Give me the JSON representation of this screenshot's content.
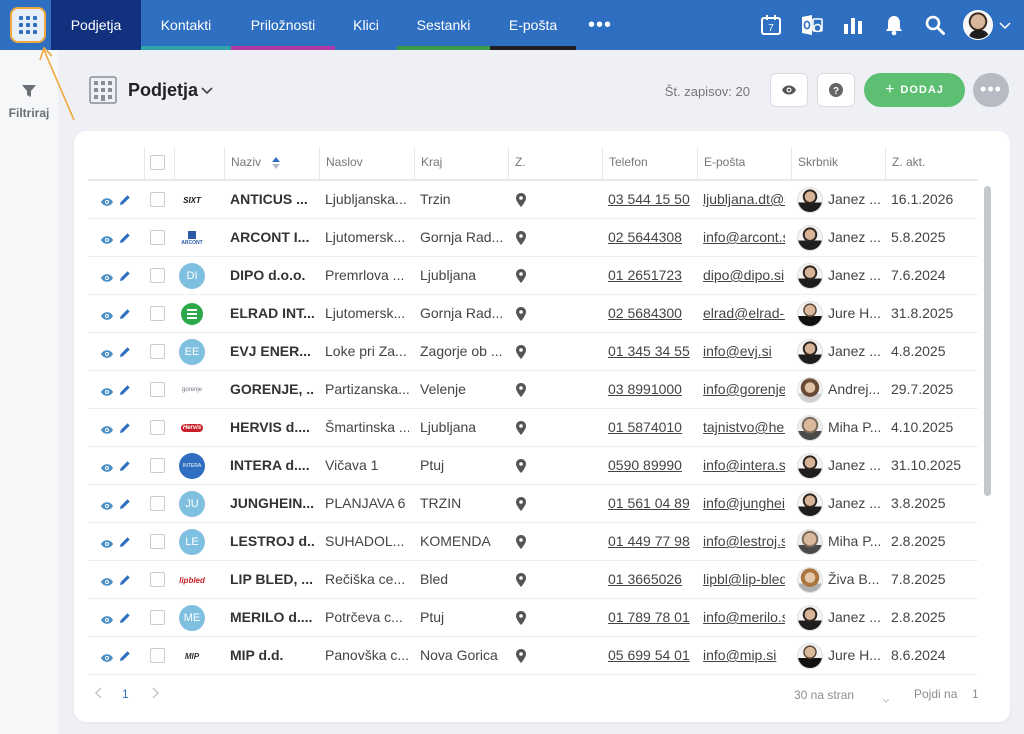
{
  "nav": {
    "tabs": [
      {
        "label": "Podjetja",
        "active": true,
        "underline": ""
      },
      {
        "label": "Kontakti",
        "active": false,
        "underline": "#2fa3a8"
      },
      {
        "label": "Priložnosti",
        "active": false,
        "underline": "#b03aa6"
      },
      {
        "label": "Klici",
        "active": false,
        "underline": "#2f6fc1"
      },
      {
        "label": "Sestanki",
        "active": false,
        "underline": "#3a9a48"
      },
      {
        "label": "E-pošta",
        "active": false,
        "underline": "#1f1f1f"
      }
    ],
    "more_label": "•••",
    "calendar_day": "7",
    "icons": [
      "calendar-icon",
      "outlook-icon",
      "reports-icon",
      "notifications-icon",
      "search-icon",
      "user-avatar"
    ]
  },
  "sidebar": {
    "filter_label": "Filtriraj"
  },
  "module": {
    "title": "Podjetja",
    "record_count": "Št. zapisov: 20",
    "add_label": "DODAJ",
    "more_label": "•••"
  },
  "table": {
    "columns": [
      "Naziv",
      "Naslov",
      "Kraj",
      "Z.",
      "Telefon",
      "E-pošta",
      "Skrbnik",
      "Z. akt."
    ],
    "rows": [
      {
        "name": "ANTICUS ...",
        "address": "Ljubljanska...",
        "city": "Trzin",
        "phone": "03 544 15 50",
        "email": "ljubljana.dt@s",
        "owner": "Janez ...",
        "date": "16.1.2026",
        "logo": "sixt",
        "avatar": "m1"
      },
      {
        "name": "ARCONT I...",
        "address": "Ljutomersk...",
        "city": "Gornja Rad...",
        "phone": "02 5644308",
        "email": "info@arcont.s",
        "owner": "Janez ...",
        "date": "5.8.2025",
        "logo": "arcont",
        "avatar": "m1"
      },
      {
        "name": "DIPO d.o.o.",
        "address": "Premrlova ...",
        "city": "Ljubljana",
        "phone": "01 2651723",
        "email": "dipo@dipo.si",
        "owner": "Janez ...",
        "date": "7.6.2024",
        "logo": "DI",
        "avatar": "m1"
      },
      {
        "name": "ELRAD INT...",
        "address": "Ljutomersk...",
        "city": "Gornja Rad...",
        "phone": "02 5684300",
        "email": "elrad@elrad-i",
        "owner": "Jure H...",
        "date": "31.8.2025",
        "logo": "elrad",
        "avatar": "m2"
      },
      {
        "name": "EVJ ENER...",
        "address": "Loke pri Za...",
        "city": "Zagorje ob ...",
        "phone": "01 345 34 55",
        "email": "info@evj.si",
        "owner": "Janez ...",
        "date": "4.8.2025",
        "logo": "EE",
        "avatar": "m1"
      },
      {
        "name": "GORENJE, ...",
        "address": "Partizanska...",
        "city": "Velenje",
        "phone": "03 8991000",
        "email": "info@gorenje",
        "owner": "Andrej...",
        "date": "29.7.2025",
        "logo": "gorenje",
        "avatar": "f1"
      },
      {
        "name": "HERVIS d....",
        "address": "Šmartinska ...",
        "city": "Ljubljana",
        "phone": "01 5874010",
        "email": "tajnistvo@her",
        "owner": "Miha P...",
        "date": "4.10.2025",
        "logo": "hervis",
        "avatar": "m3"
      },
      {
        "name": "INTERA d....",
        "address": "Vičava 1",
        "city": "Ptuj",
        "phone": "0590 89990",
        "email": "info@intera.si",
        "owner": "Janez ...",
        "date": "31.10.2025",
        "logo": "intera",
        "avatar": "m1"
      },
      {
        "name": "JUNGHEIN...",
        "address": "PLANJAVA 6",
        "city": "TRZIN",
        "phone": "01 561 04 89",
        "email": "info@junghei",
        "owner": "Janez ...",
        "date": "3.8.2025",
        "logo": "JU",
        "avatar": "m1"
      },
      {
        "name": "LESTROJ d...",
        "address": "SUHADOL...",
        "city": "KOMENDA",
        "phone": "01 449 77 98",
        "email": "info@lestroj.s",
        "owner": "Miha P...",
        "date": "2.8.2025",
        "logo": "LE",
        "avatar": "m3"
      },
      {
        "name": "LIP BLED, ...",
        "address": "Rečiška ce...",
        "city": "Bled",
        "phone": "01 3665026",
        "email": "lipbl@lip-bled",
        "owner": "Živa B...",
        "date": "7.8.2025",
        "logo": "lipbled",
        "avatar": "f2"
      },
      {
        "name": "MERILO d....",
        "address": "Potrčeva c...",
        "city": "Ptuj",
        "phone": "01 789 78 01",
        "email": "info@merilo.s",
        "owner": "Janez ...",
        "date": "2.8.2025",
        "logo": "ME",
        "avatar": "m1"
      },
      {
        "name": "MIP d.d.",
        "address": "Panovška c...",
        "city": "Nova Gorica",
        "phone": "05 699 54 01",
        "email": "info@mip.si",
        "owner": "Jure H...",
        "date": "8.6.2024",
        "logo": "mip",
        "avatar": "m2"
      }
    ]
  },
  "logos": {
    "sixt": {
      "text": "SIXT",
      "color": "#1a1a1a"
    },
    "arcont": {
      "text": "ARCONT",
      "color": "#2a5aa8"
    },
    "elrad": {
      "text": "",
      "color": "#2aa84a"
    },
    "gorenje": {
      "text": "gorenje",
      "color": "#6b7480"
    },
    "hervis": {
      "text": "Hervis",
      "color": "#c8202a"
    },
    "intera": {
      "text": "INTERA",
      "color": "#2f6fc1"
    },
    "lipbled": {
      "text": "lipbled",
      "color": "#c8202a"
    },
    "mip": {
      "text": "MIP",
      "color": "#333333"
    },
    "badge_color": "#7fc0e0"
  },
  "pagination": {
    "current_page": "1",
    "per_page": "30 na stran",
    "goto_label": "Pojdi na",
    "goto_value": "1"
  },
  "colors": {
    "nav_bg": "#2f6fc1",
    "nav_active": "#11307e",
    "add_button": "#5cbf72",
    "icon_blue": "#2f6fc1"
  }
}
